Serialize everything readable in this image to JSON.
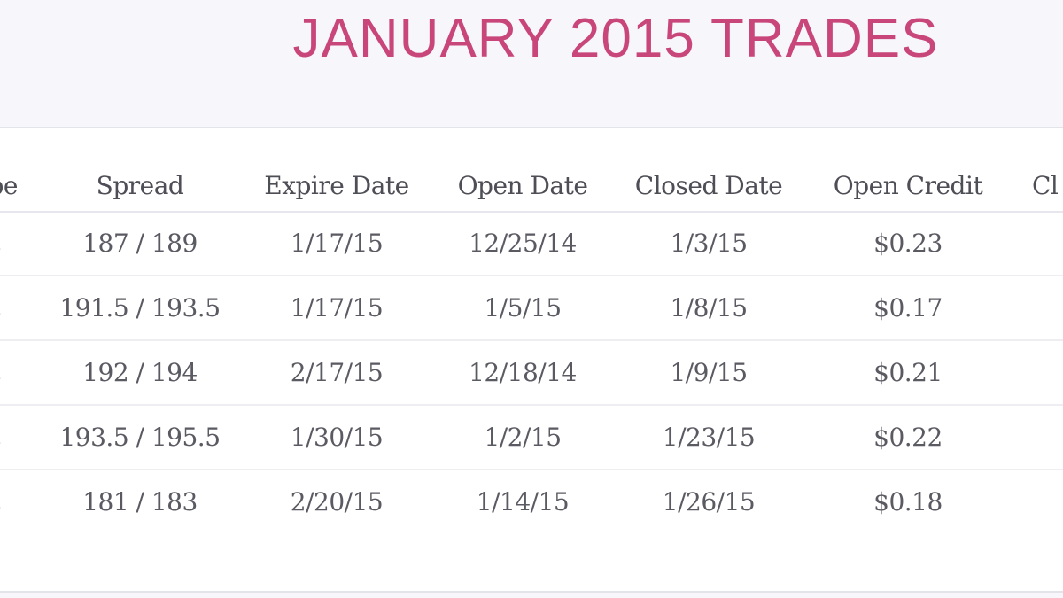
{
  "title": "JANUARY 2015 TRADES",
  "columns": [
    "pe",
    "Spread",
    "Expire Date",
    "Open Date",
    "Closed Date",
    "Open Credit",
    "Cl"
  ],
  "rows": [
    {
      "type": "t",
      "spread": "187 / 189",
      "expire": "1/17/15",
      "open": "12/25/14",
      "closed": "1/3/15",
      "credit": "$0.23"
    },
    {
      "type": "t",
      "spread": "191.5 / 193.5",
      "expire": "1/17/15",
      "open": "1/5/15",
      "closed": "1/8/15",
      "credit": "$0.17"
    },
    {
      "type": "t",
      "spread": "192 / 194",
      "expire": "2/17/15",
      "open": "12/18/14",
      "closed": "1/9/15",
      "credit": "$0.21"
    },
    {
      "type": "t",
      "spread": "193.5 / 195.5",
      "expire": "1/30/15",
      "open": "1/2/15",
      "closed": "1/23/15",
      "credit": "$0.22"
    },
    {
      "type": "t",
      "spread": "181 / 183",
      "expire": "2/20/15",
      "open": "1/14/15",
      "closed": "1/26/15",
      "credit": "$0.18"
    }
  ],
  "colors": {
    "title": "#c8467a",
    "header_text": "#4e4e56",
    "cell_text": "#5a5a62",
    "background": "#f6f6fb"
  }
}
